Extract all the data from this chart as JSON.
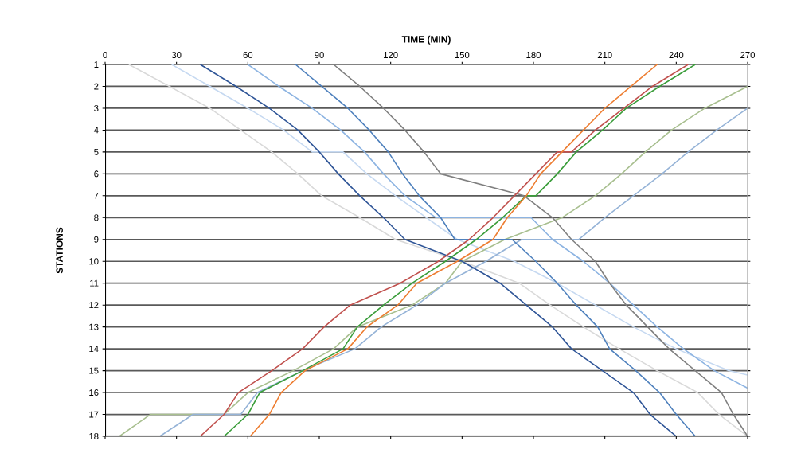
{
  "chart_data": {
    "type": "line",
    "xlabel": "TIME (MIN)",
    "ylabel": "STATIONS",
    "xlim": [
      0,
      270
    ],
    "xticks": [
      0,
      30,
      60,
      90,
      120,
      150,
      180,
      210,
      240,
      270
    ],
    "ylim": [
      18,
      1
    ],
    "yticks": [
      1,
      2,
      3,
      4,
      5,
      6,
      7,
      8,
      9,
      10,
      11,
      12,
      13,
      14,
      15,
      16,
      17,
      18
    ],
    "grid": "y",
    "marker": "none",
    "line_style": "solid",
    "series": [
      {
        "color": "#d9d9d9",
        "x": [
          10,
          27,
          44,
          57,
          70,
          81,
          91,
          107,
          122,
          150,
          174,
          187,
          201,
          216,
          232,
          249,
          258,
          270
        ],
        "values": [
          1,
          2,
          3,
          4,
          5,
          6,
          7,
          8,
          9,
          10,
          11,
          12,
          13,
          14,
          15,
          16,
          17,
          18
        ]
      },
      {
        "color": "#c6d9f1",
        "x": [
          28,
          44,
          60,
          75,
          87,
          100,
          110,
          122,
          135,
          148,
          172,
          190,
          206,
          222,
          240,
          262,
          270
        ],
        "values": [
          1,
          2,
          3,
          4,
          5,
          5,
          6,
          7,
          8,
          9,
          10,
          11,
          12,
          13,
          14,
          15,
          15.2
        ]
      },
      {
        "color": "#8db4e2",
        "x": [
          60,
          73,
          87,
          99,
          109,
          117,
          126,
          139,
          179,
          188,
          201,
          212,
          222,
          232,
          243,
          256,
          270
        ],
        "values": [
          1,
          2,
          3,
          4,
          5,
          6,
          7,
          8,
          8,
          9,
          10,
          11,
          12,
          13,
          14,
          15,
          15.8
        ]
      },
      {
        "color": "#a8bf8f",
        "x": [
          6,
          19,
          50,
          60,
          79,
          96,
          106,
          129,
          143,
          150,
          168,
          192,
          206,
          217,
          227,
          238,
          252,
          270
        ],
        "values": [
          18,
          17,
          17,
          16,
          15,
          14,
          13,
          12,
          11,
          10,
          9,
          8,
          7,
          6,
          5,
          4,
          3,
          2
        ]
      },
      {
        "color": "#95b3d7",
        "x": [
          23,
          37,
          57,
          64,
          83,
          105,
          116,
          131,
          143,
          160,
          175,
          199,
          210,
          222,
          234,
          245,
          257,
          270
        ],
        "values": [
          18,
          17,
          17,
          16,
          15,
          14,
          13,
          12,
          11,
          10,
          9,
          9,
          8,
          7,
          6,
          5,
          4,
          3
        ]
      },
      {
        "color": "#4f81bd",
        "x": [
          80,
          91,
          102,
          111,
          119,
          125,
          132,
          141,
          147,
          171,
          181,
          190,
          198,
          207,
          212,
          223,
          233,
          240,
          248
        ],
        "values": [
          1,
          2,
          3,
          4,
          5,
          6,
          7,
          8,
          9,
          9,
          10,
          11,
          12,
          13,
          14,
          15,
          16,
          17,
          18
        ]
      },
      {
        "color": "#2f5597",
        "x": [
          40,
          55,
          69,
          81,
          90,
          98,
          107,
          117,
          126,
          150,
          166,
          177,
          188,
          196,
          209,
          222,
          229,
          240
        ],
        "values": [
          1,
          2,
          3,
          4,
          5,
          6,
          7,
          8,
          9,
          10,
          11,
          12,
          13,
          14,
          15,
          16,
          17,
          18
        ]
      },
      {
        "color": "#808080",
        "x": [
          96,
          107,
          117,
          126,
          134,
          141,
          176,
          188,
          196,
          206,
          212,
          219,
          228,
          237,
          248,
          259,
          264,
          270
        ],
        "values": [
          1,
          2,
          3,
          4,
          5,
          6,
          7,
          8,
          9,
          10,
          11,
          12,
          13,
          14,
          15,
          16,
          17,
          18
        ]
      },
      {
        "color": "#c0504d",
        "x": [
          40,
          50,
          56,
          70,
          83,
          92,
          103,
          124,
          140,
          153,
          163,
          172,
          181,
          190,
          196,
          206,
          218,
          230,
          245
        ],
        "values": [
          18,
          17,
          16,
          15,
          14,
          13,
          12,
          11,
          10,
          9,
          8,
          7,
          6,
          5,
          5,
          4,
          3,
          2,
          1
        ]
      },
      {
        "color": "#3a9d3a",
        "x": [
          50,
          60,
          65,
          83,
          100,
          106,
          117,
          129,
          143,
          156,
          167,
          177,
          181,
          190,
          198,
          209,
          219,
          233,
          248
        ],
        "values": [
          18,
          17,
          16,
          15,
          14,
          13,
          12,
          11,
          10,
          9,
          8,
          7,
          7,
          6,
          5,
          4,
          3,
          2,
          1
        ]
      },
      {
        "color": "#ed7d31",
        "x": [
          61,
          69,
          74,
          84,
          102,
          110,
          123,
          131,
          148,
          163,
          169,
          177,
          183,
          192,
          201,
          210,
          221,
          232
        ],
        "values": [
          18,
          17,
          16,
          15,
          14,
          13,
          12,
          11,
          10,
          9,
          8,
          7,
          6,
          5,
          4,
          3,
          2,
          1
        ]
      }
    ]
  }
}
